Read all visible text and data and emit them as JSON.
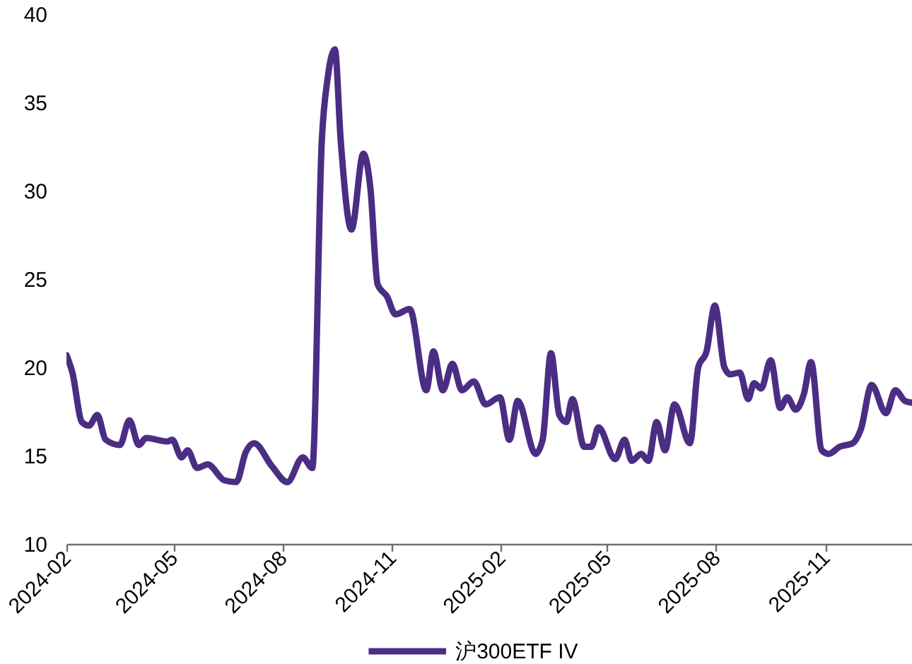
{
  "chart_data": {
    "type": "line",
    "x": [
      "2024-02-01",
      "2024-02-06",
      "2024-02-14",
      "2024-02-20",
      "2024-02-27",
      "2024-03-05",
      "2024-03-17",
      "2024-03-25",
      "2024-04-02",
      "2024-04-08",
      "2024-04-26",
      "2024-04-30",
      "2024-05-08",
      "2024-05-13",
      "2024-05-21",
      "2024-05-30",
      "2024-06-13",
      "2024-06-23",
      "2024-07-01",
      "2024-07-08",
      "2024-07-23",
      "2024-08-05",
      "2024-08-18",
      "2024-08-26",
      "2024-09-03",
      "2024-09-08",
      "2024-09-14",
      "2024-09-19",
      "2024-09-28",
      "2024-10-08",
      "2024-10-14",
      "2024-10-20",
      "2024-10-28",
      "2024-11-04",
      "2024-11-16",
      "2024-11-30",
      "2024-12-06",
      "2024-12-14",
      "2024-12-22",
      "2024-12-30",
      "2025-01-09",
      "2025-01-19",
      "2025-01-31",
      "2025-02-08",
      "2025-02-15",
      "2025-03-02",
      "2025-03-08",
      "2025-03-15",
      "2025-03-22",
      "2025-03-28",
      "2025-04-02",
      "2025-04-12",
      "2025-04-18",
      "2025-04-24",
      "2025-05-08",
      "2025-05-16",
      "2025-05-22",
      "2025-05-30",
      "2025-06-05",
      "2025-06-12",
      "2025-06-19",
      "2025-06-27",
      "2025-07-10",
      "2025-07-17",
      "2025-07-24",
      "2025-07-31",
      "2025-08-08",
      "2025-08-13",
      "2025-08-21",
      "2025-08-28",
      "2025-09-02",
      "2025-09-08",
      "2025-09-16",
      "2025-09-24",
      "2025-09-30",
      "2025-10-07",
      "2025-10-14",
      "2025-10-20",
      "2025-10-29",
      "2025-11-04",
      "2025-11-13",
      "2025-11-24",
      "2025-12-01",
      "2025-12-10",
      "2025-12-22",
      "2025-12-30",
      "2026-01-07",
      "2026-01-13"
    ],
    "series": [
      {
        "name": "沪300ETF IV",
        "color": "#4b2d84",
        "line_style": "solid",
        "values": [
          20.7,
          19.7,
          16.9,
          16.7,
          17.3,
          15.9,
          15.6,
          17.0,
          15.6,
          16.0,
          15.8,
          15.9,
          14.9,
          15.3,
          14.3,
          14.5,
          13.6,
          13.5,
          15.2,
          15.7,
          14.4,
          13.5,
          14.9,
          14.3,
          32.8,
          36.4,
          38.0,
          32.8,
          27.8,
          32.1,
          30.1,
          24.7,
          24.0,
          23.0,
          23.3,
          18.7,
          20.9,
          18.7,
          20.2,
          18.7,
          19.2,
          17.9,
          18.3,
          15.9,
          18.1,
          15.1,
          15.9,
          20.8,
          17.3,
          16.9,
          18.2,
          15.5,
          15.5,
          16.6,
          14.8,
          15.9,
          14.7,
          15.1,
          14.7,
          16.9,
          15.3,
          17.9,
          15.7,
          20.0,
          20.9,
          23.5,
          20.0,
          19.6,
          19.7,
          18.2,
          19.1,
          18.8,
          20.4,
          17.7,
          18.3,
          17.6,
          18.5,
          20.3,
          15.3,
          15.1,
          15.5,
          15.7,
          16.5,
          19.0,
          17.4,
          18.7,
          18.1,
          18.0
        ]
      }
    ],
    "xlim": [
      "2024-02-01",
      "2026-01-13"
    ],
    "xticks": [
      "2024-02",
      "2024-05",
      "2024-08",
      "2024-11",
      "2025-02",
      "2025-05",
      "2025-08",
      "2025-11"
    ],
    "ylim": [
      10,
      40
    ],
    "yticks": [
      10,
      15,
      20,
      25,
      30,
      35,
      40
    ],
    "legend": "bottom"
  }
}
